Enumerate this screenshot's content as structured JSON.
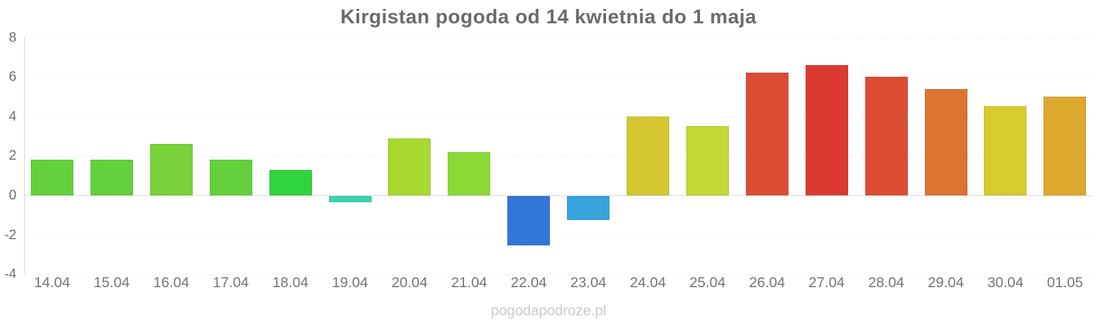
{
  "title": "Kirgistan pogoda od 14 kwietnia do 1 maja",
  "watermark": "pogodapodroze.pl",
  "chart_data": {
    "type": "bar",
    "title": "Kirgistan pogoda od 14 kwietnia do 1 maja",
    "xlabel": "",
    "ylabel": "",
    "categories": [
      "14.04",
      "15.04",
      "16.04",
      "17.04",
      "18.04",
      "19.04",
      "20.04",
      "21.04",
      "22.04",
      "23.04",
      "24.04",
      "25.04",
      "26.04",
      "27.04",
      "28.04",
      "29.04",
      "30.04",
      "01.05"
    ],
    "values": [
      1.8,
      1.8,
      2.6,
      1.8,
      1.3,
      -0.3,
      2.9,
      2.2,
      -2.5,
      -1.2,
      4.0,
      3.5,
      6.2,
      6.6,
      6.0,
      5.4,
      4.5,
      5.0
    ],
    "bar_colors": [
      "#62d13c",
      "#62d13c",
      "#79d23a",
      "#62d13c",
      "#2fd53c",
      "#38d6ae",
      "#a8d92f",
      "#8bd936",
      "#3376d9",
      "#38a3dc",
      "#d5c72f",
      "#c3d832",
      "#dc4c33",
      "#dc3a30",
      "#dc4c33",
      "#dc7430",
      "#d8cb2e",
      "#dca82e"
    ],
    "ylim": [
      -4,
      8
    ],
    "yticks": [
      8,
      6,
      4,
      2,
      0,
      -2,
      -4
    ],
    "grid": "horizontal-dotted",
    "legend": "none"
  },
  "colors": {
    "background": "#ffffff",
    "title_text": "#6b6b6b",
    "ytick_text": "#6f6f6f",
    "xlabel_text": "#757575",
    "watermark_text": "#c9c9c9",
    "gridline": "#ebebeb",
    "zero_line": "#dcdcdc",
    "axis_line": "#d4d4d4"
  }
}
